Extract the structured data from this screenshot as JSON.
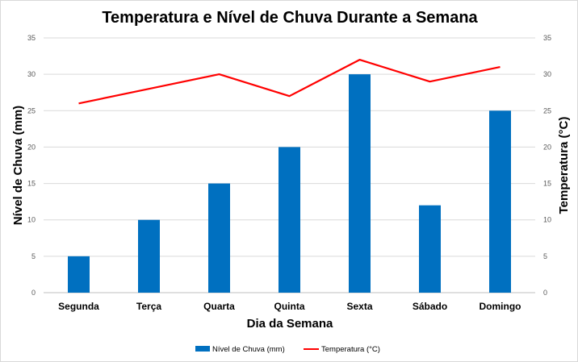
{
  "chart_data": {
    "type": "bar",
    "title": "Temperatura e Nível de Chuva Durante a Semana",
    "xlabel": "Dia da Semana",
    "ylabel": "Nível de Chuva (mm)",
    "y2label": "Temperatura (°C)",
    "categories": [
      "Segunda",
      "Terça",
      "Quarta",
      "Quinta",
      "Sexta",
      "Sábado",
      "Domingo"
    ],
    "ylim": [
      0,
      35
    ],
    "y2lim": [
      0,
      35
    ],
    "yticks": [
      0,
      5,
      10,
      15,
      20,
      25,
      30,
      35
    ],
    "y2ticks": [
      0,
      5,
      10,
      15,
      20,
      25,
      30,
      35
    ],
    "grid": true,
    "legend_position": "bottom",
    "series": [
      {
        "name": "Nível de Chuva (mm)",
        "type": "bar",
        "axis": "left",
        "color": "#0070C0",
        "values": [
          5,
          10,
          15,
          20,
          30,
          12,
          25
        ]
      },
      {
        "name": "Temperatura (°C)",
        "type": "line",
        "axis": "right",
        "color": "#FF0000",
        "values": [
          26,
          28,
          30,
          27,
          32,
          29,
          31
        ]
      }
    ]
  }
}
